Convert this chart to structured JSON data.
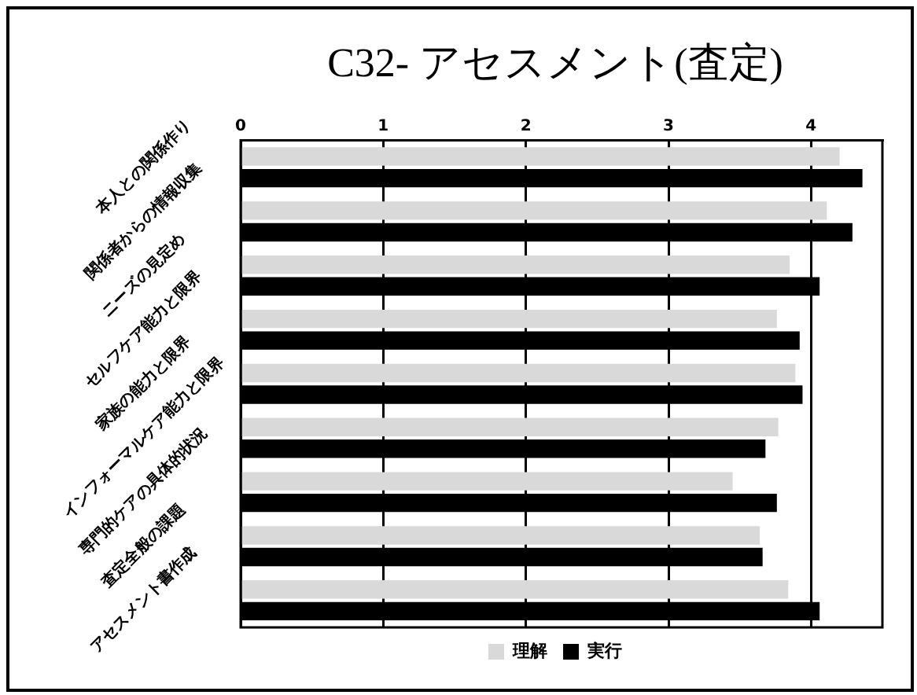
{
  "chart_data": {
    "type": "bar",
    "orientation": "horizontal",
    "title": "C32- アセスメント(査定)",
    "categories": [
      "本人との関係作り",
      "関係者からの情報収集",
      "ニーズの見定め",
      "セルフケア能力と限界",
      "家族の能力と限界",
      "インフォーマルケア能力と限界",
      "専門的ケアの具体的状況",
      "査定全般の課題",
      "アセスメント書作成"
    ],
    "series": [
      {
        "name": "理解",
        "color": "#d9d9d9",
        "values": [
          4.2,
          4.11,
          3.85,
          3.76,
          3.89,
          3.77,
          3.45,
          3.64,
          3.84
        ]
      },
      {
        "name": "実行",
        "color": "#000000",
        "values": [
          4.36,
          4.29,
          4.06,
          3.92,
          3.94,
          3.68,
          3.76,
          3.66,
          4.06
        ]
      }
    ],
    "xlim": [
      0,
      4.5
    ],
    "xticks": [
      0,
      1,
      2,
      3,
      4
    ],
    "grid": "x",
    "legend": "bottom"
  }
}
